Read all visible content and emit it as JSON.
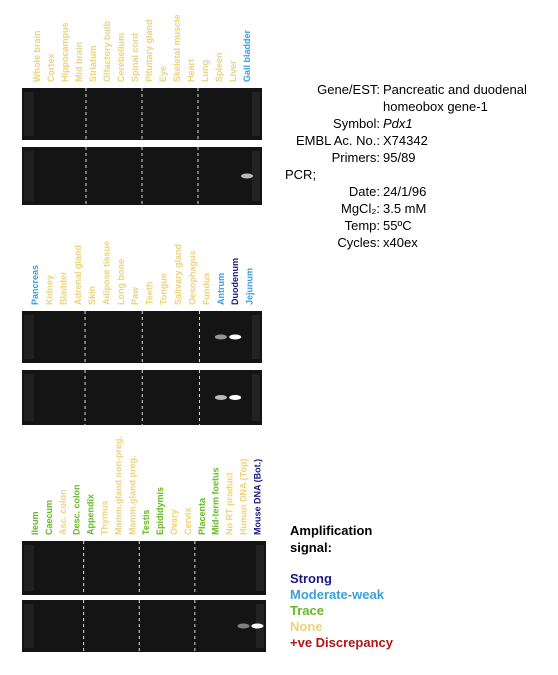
{
  "panels": [
    {
      "lanes": [
        {
          "label": "Whole brain",
          "color": "#eed27a"
        },
        {
          "label": "Cortex",
          "color": "#eed27a"
        },
        {
          "label": "Hippocampus",
          "color": "#eed27a"
        },
        {
          "label": "Mid brain",
          "color": "#eed27a"
        },
        {
          "label": "Striatum",
          "color": "#eed27a"
        },
        {
          "label": "Olfactory bulb",
          "color": "#eed27a"
        },
        {
          "label": "Cerebellum",
          "color": "#eed27a"
        },
        {
          "label": "Spinal cord",
          "color": "#eed27a"
        },
        {
          "label": "Pituitary gland",
          "color": "#eed27a"
        },
        {
          "label": "Eye",
          "color": "#eed27a"
        },
        {
          "label": "Skeletal muscle",
          "color": "#eed27a"
        },
        {
          "label": "Heart",
          "color": "#eed27a"
        },
        {
          "label": "Lung",
          "color": "#eed27a"
        },
        {
          "label": "Spleen",
          "color": "#eed27a"
        },
        {
          "label": "Liver",
          "color": "#eed27a"
        },
        {
          "label": "Gall bladder",
          "color": "#3a9fd8"
        }
      ]
    },
    {
      "lanes": [
        {
          "label": "Pancreas",
          "color": "#3a9fd8"
        },
        {
          "label": "Kidney",
          "color": "#eed27a"
        },
        {
          "label": "Bladder",
          "color": "#eed27a"
        },
        {
          "label": "Adrenal gland",
          "color": "#eed27a"
        },
        {
          "label": "Skin",
          "color": "#eed27a"
        },
        {
          "label": "Adipose tissue",
          "color": "#eed27a"
        },
        {
          "label": "Long bone",
          "color": "#eed27a"
        },
        {
          "label": "Paw",
          "color": "#eed27a"
        },
        {
          "label": "Teeth",
          "color": "#eed27a"
        },
        {
          "label": "Tongue",
          "color": "#eed27a"
        },
        {
          "label": "Salivary gland",
          "color": "#eed27a"
        },
        {
          "label": "Oesophagus",
          "color": "#eed27a"
        },
        {
          "label": "Fundus",
          "color": "#eed27a"
        },
        {
          "label": "Antrum",
          "color": "#3a9fd8"
        },
        {
          "label": "Duodenum",
          "color": "#1a1a80"
        },
        {
          "label": "Jejunum",
          "color": "#3a9fd8"
        }
      ]
    },
    {
      "lanes": [
        {
          "label": "Ileum",
          "color": "#66b822"
        },
        {
          "label": "Caecum",
          "color": "#66b822"
        },
        {
          "label": "Asc. colon",
          "color": "#eed27a"
        },
        {
          "label": "Desc. colon",
          "color": "#66b822"
        },
        {
          "label": "Appendix",
          "color": "#66b822"
        },
        {
          "label": "Thymus",
          "color": "#eed27a"
        },
        {
          "label": "Mamm.gland non-preg.",
          "color": "#eed27a"
        },
        {
          "label": "Mamm.gland preg.",
          "color": "#eed27a"
        },
        {
          "label": "Testis",
          "color": "#66b822"
        },
        {
          "label": "Epididymis",
          "color": "#66b822"
        },
        {
          "label": "Ovary",
          "color": "#eed27a"
        },
        {
          "label": "Cervix",
          "color": "#eed27a"
        },
        {
          "label": "Placenta",
          "color": "#66b822"
        },
        {
          "label": "Mid-term foetus",
          "color": "#66b822"
        },
        {
          "label": "No RT product",
          "color": "#eed27a"
        },
        {
          "label": "Human DNA (Top)",
          "color": "#eed27a"
        },
        {
          "label": "Mouse DNA (Bot.)",
          "color": "#1a1a80"
        }
      ]
    }
  ],
  "info": [
    {
      "key": "Gene/EST:",
      "value": [
        "Pancreatic and duodenal",
        "homeobox gene-1"
      ]
    },
    {
      "key": "Symbol:",
      "value": [
        "Pdx1"
      ],
      "italic": true
    },
    {
      "key": "EMBL Ac. No.:",
      "value": [
        "X74342"
      ]
    },
    {
      "key": "Primers:",
      "value": [
        "95/89"
      ]
    },
    {
      "heading": "PCR;"
    },
    {
      "key": "Date:",
      "value": [
        "24/1/96"
      ]
    },
    {
      "key": "MgCl₂:",
      "value": [
        "3.5 mM"
      ]
    },
    {
      "key": "Temp:",
      "value": [
        "55ºC"
      ]
    },
    {
      "key": "Cycles:",
      "value": [
        "x40ex"
      ]
    }
  ],
  "legend": {
    "title": [
      "Amplification",
      "signal:"
    ],
    "items": [
      {
        "label": "Strong",
        "color": "#1a1a80"
      },
      {
        "label": "Moderate-weak",
        "color": "#3a9fd8"
      },
      {
        "label": "Trace",
        "color": "#66b822"
      },
      {
        "label": "None",
        "color": "#eed27a"
      },
      {
        "label": "+ve Discrepancy",
        "color": "#b01515"
      }
    ]
  }
}
